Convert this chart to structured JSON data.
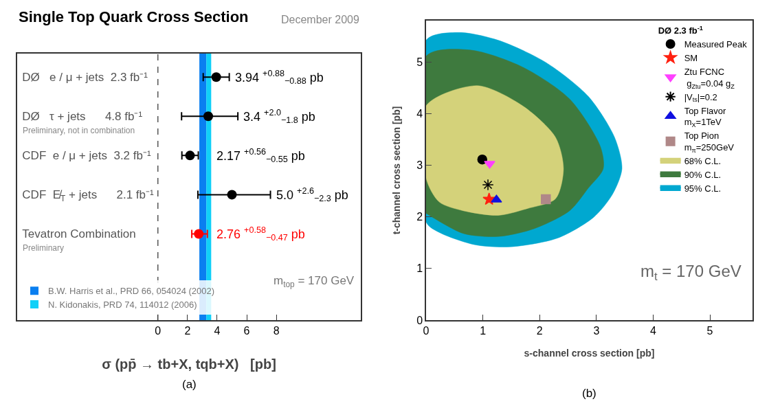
{
  "chart_data": [
    {
      "type": "scatter",
      "orientation": "horizontal",
      "title": "Single Top Quark Cross Section",
      "subtitle": "December 2009",
      "xlabel": "σ (pp̄ → tb+X, tqb+X)   [pb]",
      "categories": [
        "DØ   e / μ + jets  2.3 fb⁻¹",
        "DØ   τ + jets      4.8 fb⁻¹",
        "CDF  e / μ + jets  3.2 fb⁻¹",
        "CDF  E̸$_{T}$ + jets      2.1 fb⁻¹",
        "Tevatron Combination"
      ],
      "values": [
        3.94,
        3.4,
        2.17,
        5.0,
        2.76
      ],
      "errors": [
        [
          3.06,
          4.82
        ],
        [
          1.6,
          5.4
        ],
        [
          1.62,
          2.73
        ],
        [
          2.7,
          7.6
        ],
        [
          2.29,
          3.34
        ]
      ],
      "colors": [
        "#000000",
        "#000000",
        "#000000",
        "#000000",
        "#ff0000"
      ],
      "value_labels": [
        "3.94 $^{+0.88}$$_{−0.88}$ pb",
        "3.4 $^{+2.0}$$_{−1.8}$ pb",
        "2.17 $^{+0.56}$$_{−0.55}$ pb",
        "5.0 $^{+2.6}$$_{−2.3}$ pb",
        "2.76 $^{+0.58}$$_{−0.47}$ pb"
      ],
      "marker": "circle",
      "xlim": [
        -9.5,
        13.7
      ],
      "xticks": [
        0,
        2,
        4,
        6,
        8
      ],
      "ref_lines": [
        {
          "axis": "x",
          "value": 0,
          "line_style": "dashed",
          "color": "#555555"
        }
      ],
      "bands": [
        {
          "axis": "x",
          "from": 2.8,
          "to": 3.27,
          "label": "B.W. Harris et al., PRD 66, 054024 (2002)",
          "color": "#0a7ff0"
        },
        {
          "axis": "x",
          "from": 3.27,
          "to": 3.6,
          "label": "N. Kidonakis, PRD 74, 114012 (2006)",
          "color": "#10d0f8"
        }
      ],
      "annotations": [
        "Preliminary, not in combination",
        "Preliminary",
        "m$_{top}$ = 170 GeV",
        "(a)"
      ],
      "legend": "bottom left",
      "grid": false
    },
    {
      "type": "scatter",
      "xlabel": "s-channel cross section [pb]",
      "ylabel": "t-channel cross section [pb]",
      "legend_title": "DØ 2.3 fb$^{-1}$",
      "xlim": [
        0,
        5.75
      ],
      "ylim": [
        0,
        5.8
      ],
      "xticks": [
        0,
        1,
        2,
        3,
        4,
        5
      ],
      "yticks": [
        0,
        1,
        2,
        3,
        4,
        5
      ],
      "grid": false,
      "legend": "top right",
      "series": [
        {
          "name": "Measured Peak",
          "type": "scatter",
          "marker": "circle",
          "color": "#000000",
          "x": [
            0.99
          ],
          "values": [
            3.11
          ]
        },
        {
          "name": "SM",
          "type": "scatter",
          "marker": "star",
          "color": "#ff2010",
          "x": [
            1.11
          ],
          "values": [
            2.34
          ]
        },
        {
          "name": "Ztu FCNC\n g$_{Ztu}$=0.04 g$_{Z}$",
          "type": "scatter",
          "marker": "triangle-down",
          "color": "#ff40ff",
          "x": [
            1.12
          ],
          "values": [
            3.03
          ]
        },
        {
          "name": "|V$_{ts}$|=0.2",
          "type": "scatter",
          "marker": "cross",
          "color": "#000000",
          "x": [
            1.09
          ],
          "values": [
            2.62
          ]
        },
        {
          "name": "Top Flavor\nm$_{X}$=1TeV",
          "type": "scatter",
          "marker": "triangle",
          "color": "#1010e0",
          "x": [
            1.24
          ],
          "values": [
            2.33
          ]
        },
        {
          "name": "Top Pion\nm$_{π}$=250GeV",
          "type": "scatter",
          "marker": "square",
          "color": "#b08888",
          "x": [
            2.11
          ],
          "values": [
            2.34
          ]
        },
        {
          "name": "68% C.L.",
          "type": "area",
          "color": "#d4d27a",
          "x": [
            0,
            0,
            0.9,
            1.7,
            2.28,
            2.42,
            2.28,
            1.78,
            1.27,
            0.65,
            0.23,
            0
          ],
          "values": [
            2.75,
            4.15,
            4.54,
            4.15,
            3.54,
            2.93,
            2.35,
            2.16,
            2.03,
            2.12,
            2.29,
            2.75
          ]
        },
        {
          "name": "90% C.L.",
          "type": "area",
          "color": "#3e7a3e",
          "x": [
            0,
            0,
            0.78,
            1.7,
            2.53,
            3.07,
            3.12,
            2.86,
            2.53,
            1.9,
            1.27,
            0.65,
            0,
            0
          ],
          "values": [
            2.07,
            5.11,
            5.23,
            4.9,
            4.28,
            3.36,
            2.93,
            2.56,
            2.12,
            1.77,
            1.62,
            1.68,
            2.07,
            2.07
          ]
        },
        {
          "name": "95% C.L.",
          "type": "area",
          "color": "#00a8d0",
          "x": [
            0,
            0.23,
            0.86,
            1.49,
            2.32,
            2.95,
            3.28,
            3.45,
            3.32,
            2.86,
            2.11,
            1.27,
            0.57,
            0,
            0
          ],
          "values": [
            1.9,
            1.7,
            1.46,
            1.42,
            1.59,
            1.99,
            2.43,
            2.93,
            3.54,
            4.33,
            4.99,
            5.42,
            5.57,
            5.42,
            1.9
          ]
        }
      ],
      "annotations": [
        "m$_{t}$ = 170 GeV",
        "(b)"
      ]
    }
  ]
}
